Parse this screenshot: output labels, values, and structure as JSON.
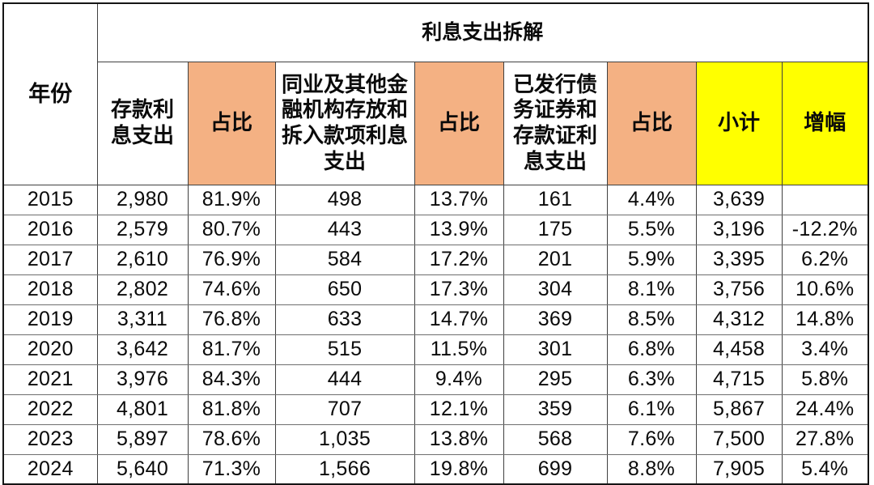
{
  "chart_data": {
    "type": "table",
    "title": "利息支出拆解",
    "row_header": "年份",
    "columns": [
      "存款利息支出",
      "占比",
      "同业及其他金融机构存放和拆入款项利息支出",
      "占比",
      "已发行债务证券和存款证利息支出",
      "占比",
      "小计",
      "增幅"
    ],
    "column_keys": [
      "year",
      "deposit_interest",
      "deposit_share",
      "interbank_interest",
      "interbank_share",
      "debt_securities_interest",
      "debt_securities_share",
      "subtotal",
      "growth"
    ],
    "rows": [
      [
        "2015",
        "2,980",
        "81.9%",
        "498",
        "13.7%",
        "161",
        "4.4%",
        "3,639",
        ""
      ],
      [
        "2016",
        "2,579",
        "80.7%",
        "443",
        "13.9%",
        "175",
        "5.5%",
        "3,196",
        "-12.2%"
      ],
      [
        "2017",
        "2,610",
        "76.9%",
        "584",
        "17.2%",
        "201",
        "5.9%",
        "3,395",
        "6.2%"
      ],
      [
        "2018",
        "2,802",
        "74.6%",
        "650",
        "17.3%",
        "304",
        "8.1%",
        "3,756",
        "10.6%"
      ],
      [
        "2019",
        "3,311",
        "76.8%",
        "633",
        "14.7%",
        "369",
        "8.5%",
        "4,312",
        "14.8%"
      ],
      [
        "2020",
        "3,642",
        "81.7%",
        "515",
        "11.5%",
        "301",
        "6.8%",
        "4,458",
        "3.4%"
      ],
      [
        "2021",
        "3,976",
        "84.3%",
        "444",
        "9.4%",
        "295",
        "6.3%",
        "4,715",
        "5.8%"
      ],
      [
        "2022",
        "4,801",
        "81.8%",
        "707",
        "12.1%",
        "359",
        "6.1%",
        "5,867",
        "24.4%"
      ],
      [
        "2023",
        "5,897",
        "78.6%",
        "1,035",
        "13.8%",
        "568",
        "7.6%",
        "7,500",
        "27.8%"
      ],
      [
        "2024",
        "5,640",
        "71.3%",
        "1,566",
        "19.8%",
        "699",
        "8.8%",
        "7,905",
        "5.4%"
      ]
    ]
  },
  "colors": {
    "share_column_fill": "#F4B183",
    "summary_column_fill": "#FFFF00",
    "grid_line": "#404040",
    "text": "#0A0A0A",
    "background": "#FFFFFF"
  }
}
